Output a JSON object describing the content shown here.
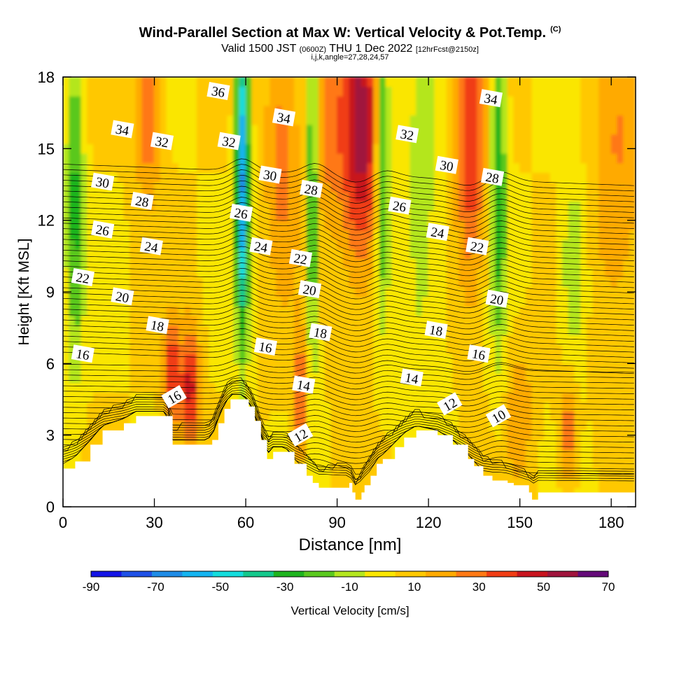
{
  "title": {
    "main": "Wind-Parallel Section at Max W: Vertical Velocity & Pot.Temp.",
    "main_suffix": "(C)",
    "valid_prefix": "Valid 1500 JST",
    "valid_z": "(0600Z)",
    "valid_date": "THU 1 Dec 2022",
    "valid_fcst": "[12hrFcst@2150z]",
    "ijk": "i,j,k,angle=27,28,24,57"
  },
  "chart_data": {
    "type": "heatmap",
    "xlabel": "Distance [nm]",
    "ylabel": "Height [Kft MSL]",
    "xlim": [
      0,
      188
    ],
    "ylim": [
      0,
      18
    ],
    "x_ticks": [
      0,
      30,
      60,
      90,
      120,
      150,
      180
    ],
    "y_ticks": [
      0,
      3,
      6,
      9,
      12,
      15,
      18
    ],
    "colorbar": {
      "title": "Vertical Velocity [cm/s]",
      "tick_labels": [
        -90,
        -70,
        -50,
        -30,
        -10,
        10,
        30,
        50,
        70
      ],
      "bins": [
        -90,
        -80,
        -70,
        -60,
        -50,
        -40,
        -30,
        -20,
        -10,
        0,
        10,
        20,
        30,
        40,
        50,
        60,
        70
      ],
      "colors": [
        "#1414e6",
        "#1e50e6",
        "#1e8ce6",
        "#14b4f0",
        "#14dcdc",
        "#14c88c",
        "#1eb41e",
        "#5ac81e",
        "#b4e61e",
        "#fae600",
        "#ffc800",
        "#ffaa00",
        "#ff7814",
        "#f03c14",
        "#c8141e",
        "#a0143c",
        "#640a78"
      ]
    },
    "terrain_kft": [
      [
        0,
        1.6
      ],
      [
        4,
        1.9
      ],
      [
        9,
        2.6
      ],
      [
        13,
        3.2
      ],
      [
        20,
        3.5
      ],
      [
        24,
        3.8
      ],
      [
        34,
        3.8
      ],
      [
        36,
        2.6
      ],
      [
        47,
        2.6
      ],
      [
        49,
        2.8
      ],
      [
        51,
        3.5
      ],
      [
        53,
        4.1
      ],
      [
        55,
        4.5
      ],
      [
        59,
        4.5
      ],
      [
        61,
        4.2
      ],
      [
        63,
        3.6
      ],
      [
        65,
        2.8
      ],
      [
        67,
        2.0
      ],
      [
        69,
        2.3
      ],
      [
        73,
        2.3
      ],
      [
        76,
        1.8
      ],
      [
        80,
        1.3
      ],
      [
        82,
        1.0
      ],
      [
        84,
        0.8
      ],
      [
        94,
        1.0
      ],
      [
        95,
        0.6
      ],
      [
        96,
        0.3
      ],
      [
        98,
        0.6
      ],
      [
        99,
        0.9
      ],
      [
        101,
        1.3
      ],
      [
        103,
        1.8
      ],
      [
        105,
        2.0
      ],
      [
        109,
        2.5
      ],
      [
        112,
        2.9
      ],
      [
        116,
        3.2
      ],
      [
        123,
        3.0
      ],
      [
        128,
        2.6
      ],
      [
        133,
        2.0
      ],
      [
        135,
        1.7
      ],
      [
        138,
        1.3
      ],
      [
        141,
        1.1
      ],
      [
        146,
        1.0
      ],
      [
        148,
        0.9
      ],
      [
        153,
        0.6
      ],
      [
        154,
        0.3
      ],
      [
        156,
        0.6
      ],
      [
        188,
        0.6
      ]
    ],
    "updrafts": [
      {
        "x": 98,
        "z": 15.5,
        "w": 55,
        "sx": 4.5,
        "sz": 4
      },
      {
        "x": 134,
        "z": 15.5,
        "w": 40,
        "sx": 3.5,
        "sz": 4.5
      },
      {
        "x": 42,
        "z": 5.0,
        "w": 45,
        "sx": 2.2,
        "sz": 1.8
      },
      {
        "x": 36,
        "z": 5.5,
        "w": 40,
        "sx": 2,
        "sz": 1.6
      },
      {
        "x": 28,
        "z": 16.5,
        "w": 30,
        "sx": 3,
        "sz": 2.5
      },
      {
        "x": 78,
        "z": 4.5,
        "w": 35,
        "sx": 1.5,
        "sz": 2
      },
      {
        "x": 72,
        "z": 15,
        "w": 25,
        "sx": 4,
        "sz": 4
      },
      {
        "x": 87,
        "z": 16,
        "w": 25,
        "sx": 4,
        "sz": 3
      },
      {
        "x": 166,
        "z": 3.0,
        "w": 30,
        "sx": 2,
        "sz": 1.5
      },
      {
        "x": 150,
        "z": 4,
        "w": 20,
        "sx": 3,
        "sz": 2
      },
      {
        "x": 182,
        "z": 14,
        "w": 20,
        "sx": 6,
        "sz": 5
      }
    ],
    "downdrafts": [
      {
        "x": 59,
        "z": 14,
        "w": -70,
        "sx": 1.6,
        "sz": 5
      },
      {
        "x": 82,
        "z": 13,
        "w": -45,
        "sx": 1.3,
        "sz": 5
      },
      {
        "x": 105,
        "z": 15,
        "w": -45,
        "sx": 1.6,
        "sz": 4.5
      },
      {
        "x": 143,
        "z": 14,
        "w": -40,
        "sx": 1.8,
        "sz": 5
      },
      {
        "x": 4,
        "z": 13,
        "w": -35,
        "sx": 2,
        "sz": 5
      },
      {
        "x": 168,
        "z": 10,
        "w": -25,
        "sx": 3,
        "sz": 2.5
      },
      {
        "x": 118,
        "z": 11,
        "w": -15,
        "sx": 5,
        "sz": 6
      }
    ],
    "theta_contour_labels": [
      {
        "v": "36",
        "x": 51,
        "z": 17.4
      },
      {
        "v": "34",
        "x": 19.5,
        "z": 15.8
      },
      {
        "v": "34",
        "x": 72.5,
        "z": 16.3
      },
      {
        "v": "34",
        "x": 140.5,
        "z": 17.1
      },
      {
        "v": "32",
        "x": 32.5,
        "z": 15.3
      },
      {
        "v": "32",
        "x": 54.5,
        "z": 15.3
      },
      {
        "v": "32",
        "x": 113,
        "z": 15.6
      },
      {
        "v": "30",
        "x": 13,
        "z": 13.6
      },
      {
        "v": "30",
        "x": 68,
        "z": 13.9
      },
      {
        "v": "30",
        "x": 126,
        "z": 14.3
      },
      {
        "v": "28",
        "x": 26,
        "z": 12.8
      },
      {
        "v": "28",
        "x": 81.5,
        "z": 13.3
      },
      {
        "v": "28",
        "x": 141,
        "z": 13.8
      },
      {
        "v": "26",
        "x": 13,
        "z": 11.6
      },
      {
        "v": "26",
        "x": 58.5,
        "z": 12.3
      },
      {
        "v": "26",
        "x": 110.5,
        "z": 12.6
      },
      {
        "v": "24",
        "x": 29,
        "z": 10.9
      },
      {
        "v": "24",
        "x": 65,
        "z": 10.9
      },
      {
        "v": "24",
        "x": 123,
        "z": 11.5
      },
      {
        "v": "22",
        "x": 6.5,
        "z": 9.6
      },
      {
        "v": "22",
        "x": 78,
        "z": 10.4
      },
      {
        "v": "22",
        "x": 136,
        "z": 10.9
      },
      {
        "v": "20",
        "x": 19.5,
        "z": 8.8
      },
      {
        "v": "20",
        "x": 81,
        "z": 9.1
      },
      {
        "v": "20",
        "x": 142.5,
        "z": 8.7
      },
      {
        "v": "18",
        "x": 31,
        "z": 7.6
      },
      {
        "v": "18",
        "x": 84.5,
        "z": 7.3
      },
      {
        "v": "18",
        "x": 122.5,
        "z": 7.4
      },
      {
        "v": "16",
        "x": 6.5,
        "z": 6.4
      },
      {
        "v": "16",
        "x": 66.5,
        "z": 6.7
      },
      {
        "v": "16",
        "x": 136.5,
        "z": 6.4
      },
      {
        "v": "16",
        "x": 36.5,
        "z": 4.6
      },
      {
        "v": "14",
        "x": 79,
        "z": 5.1
      },
      {
        "v": "14",
        "x": 114.5,
        "z": 5.4
      },
      {
        "v": "12",
        "x": 78,
        "z": 3.0
      },
      {
        "v": "12",
        "x": 127,
        "z": 4.3
      },
      {
        "v": "10",
        "x": 143,
        "z": 3.8
      }
    ]
  }
}
